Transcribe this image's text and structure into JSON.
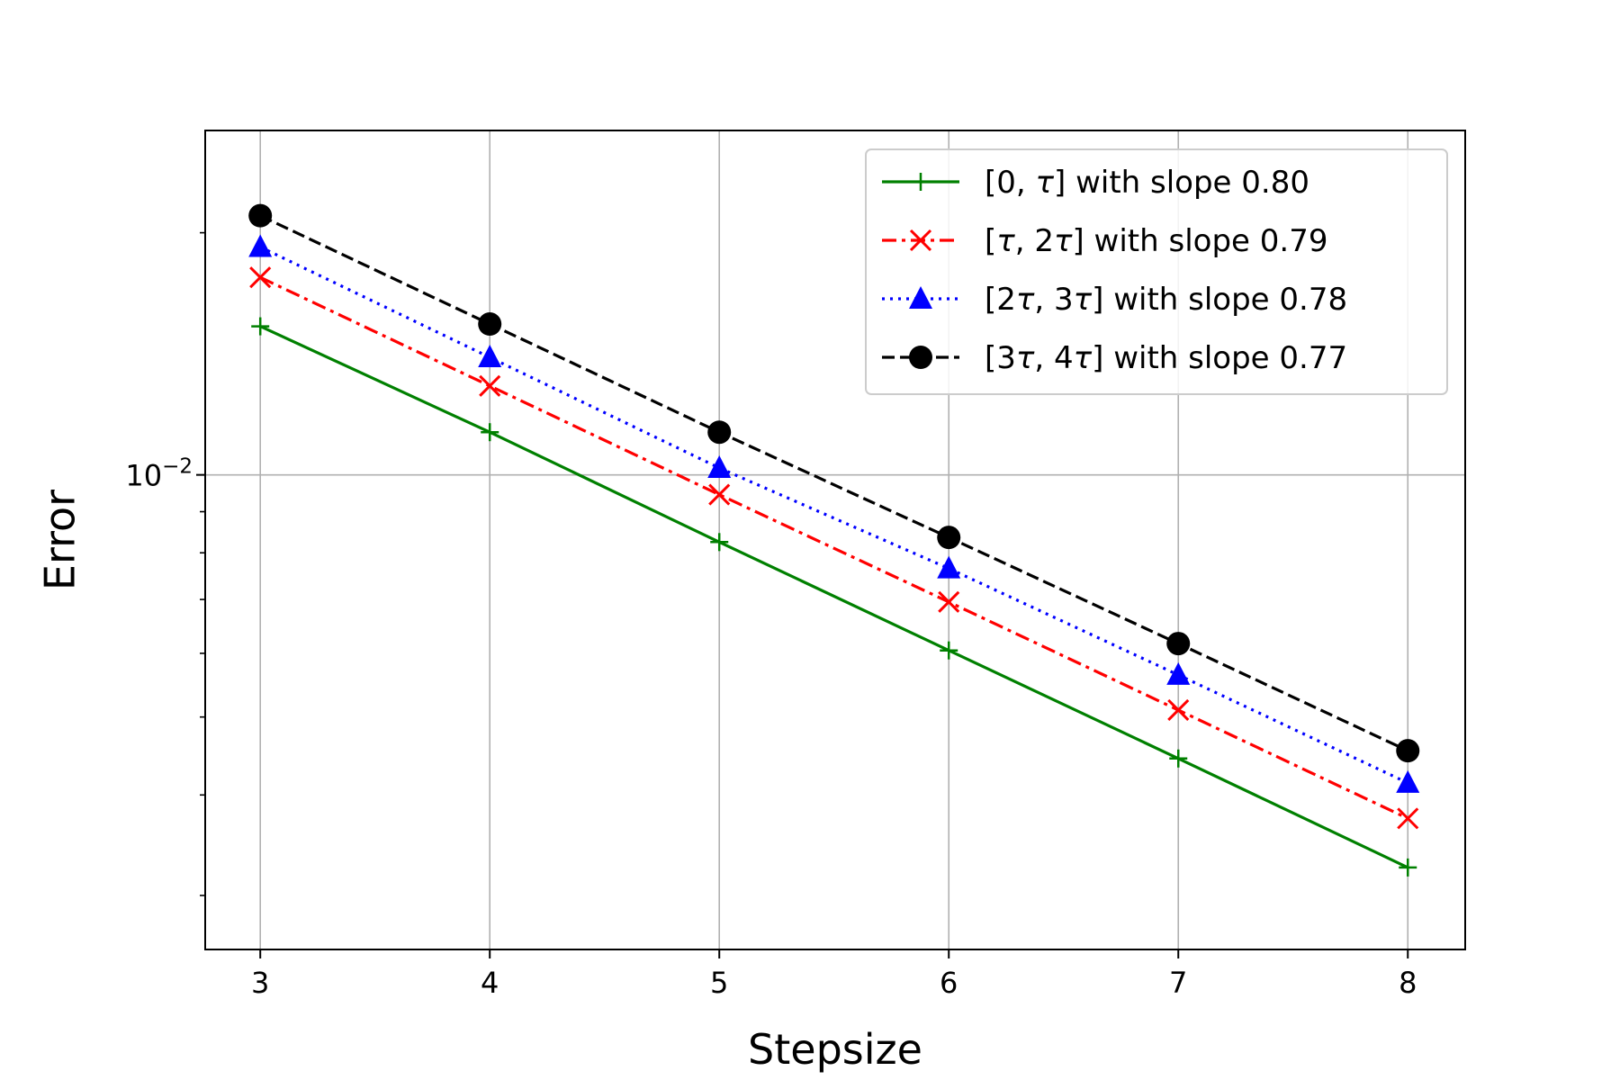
{
  "chart_data": {
    "type": "line",
    "title": "",
    "xlabel": "Stepsize",
    "ylabel": "Error",
    "x": [
      3,
      4,
      5,
      6,
      7,
      8
    ],
    "xticks": [
      "3",
      "4",
      "5",
      "6",
      "7",
      "8"
    ],
    "xlim": [
      2.76,
      8.25
    ],
    "yscale": "log",
    "ylim": [
      0.00257,
      0.0268
    ],
    "yticks": [
      {
        "value": 0.01,
        "base": "10",
        "exp": "−2"
      }
    ],
    "grid": true,
    "legend_position": "top-right",
    "series": [
      {
        "name": "[0, τ] with slope 0.80",
        "name_parts": [
          "[0, ",
          "τ",
          "] with slope 0.80"
        ],
        "color": "#008000",
        "line_style": "solid",
        "marker": "plus",
        "values": [
          0.0153,
          0.0113,
          0.00825,
          0.00605,
          0.00444,
          0.00325
        ]
      },
      {
        "name": "[τ, 2τ] with slope 0.79",
        "name_parts": [
          "[",
          "τ",
          ", 2",
          "τ",
          "] with slope 0.79"
        ],
        "color": "#ff0000",
        "line_style": "dashdot",
        "marker": "x",
        "values": [
          0.0176,
          0.0129,
          0.00945,
          0.00695,
          0.0051,
          0.00374
        ]
      },
      {
        "name": "[2τ, 3τ] with slope 0.78",
        "name_parts": [
          "[2",
          "τ",
          ", 3",
          "τ",
          "] with slope 0.78"
        ],
        "color": "#0000ff",
        "line_style": "dotted",
        "marker": "triangle",
        "values": [
          0.0192,
          0.014,
          0.0102,
          0.00765,
          0.00564,
          0.00414
        ]
      },
      {
        "name": "[3τ, 4τ] with slope 0.77",
        "name_parts": [
          "[3",
          "τ",
          ", 4",
          "τ",
          "] with slope 0.77"
        ],
        "color": "#000000",
        "line_style": "dashed",
        "marker": "circle",
        "values": [
          0.021,
          0.0154,
          0.0113,
          0.00836,
          0.00617,
          0.00454
        ]
      }
    ]
  }
}
